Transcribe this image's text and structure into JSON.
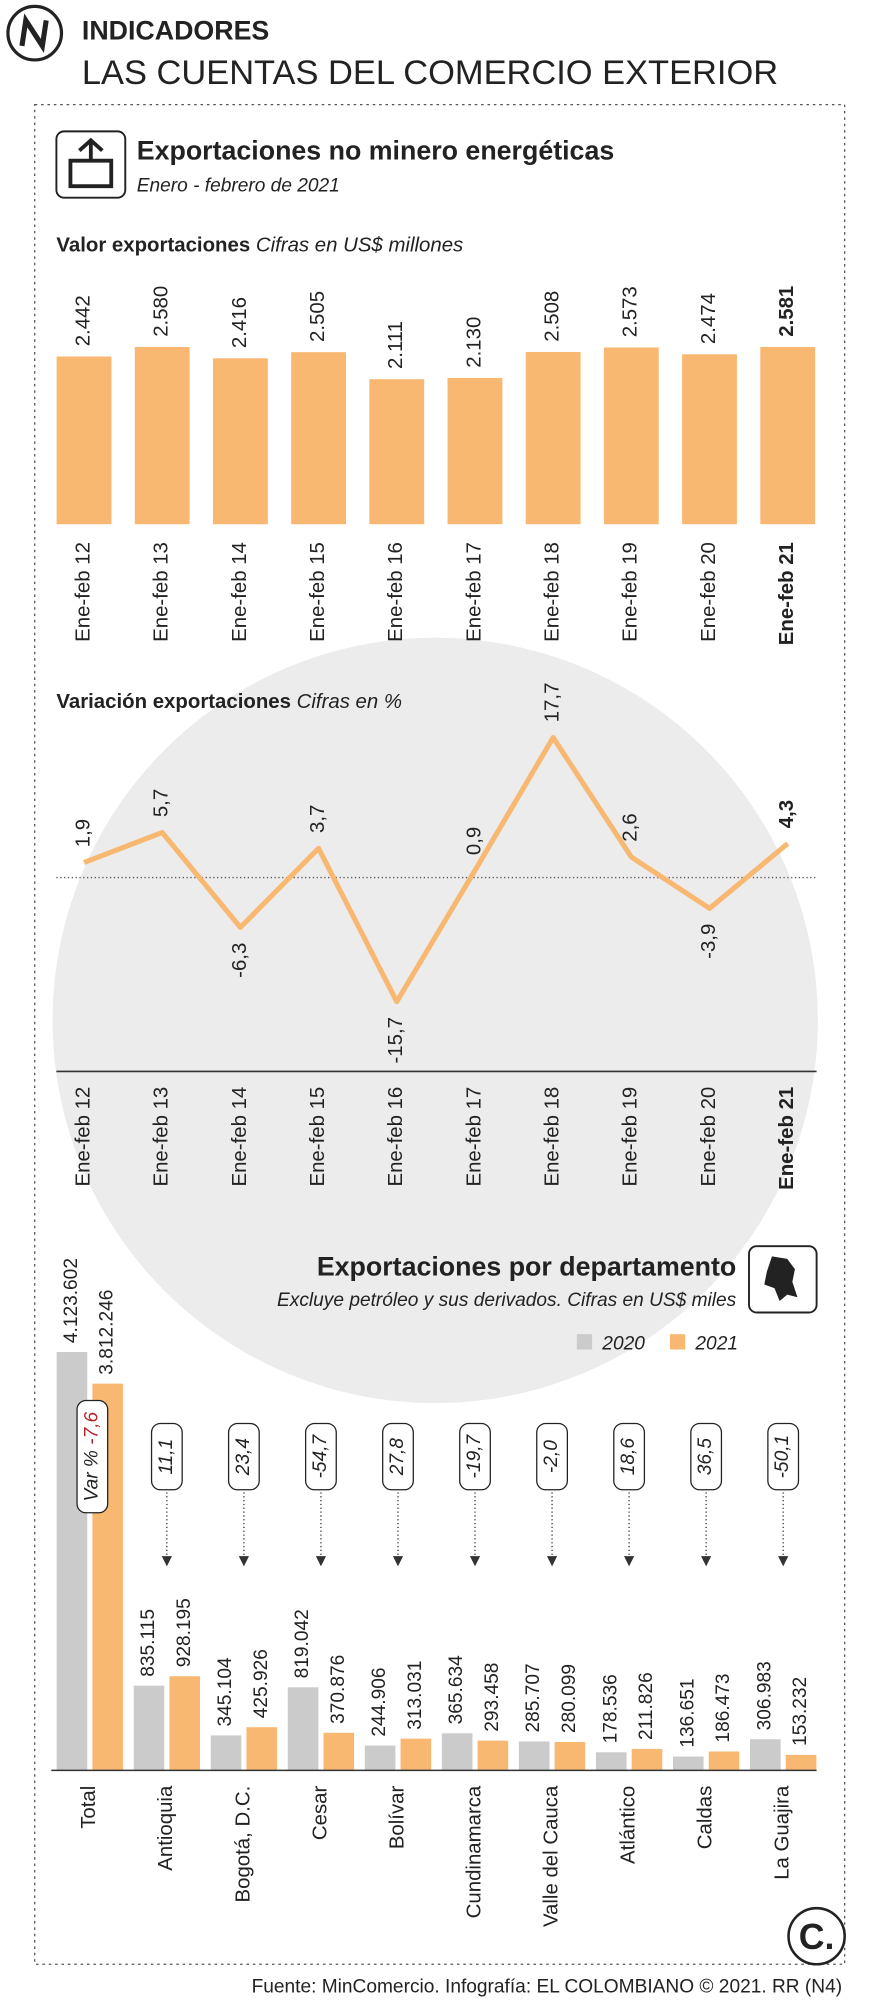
{
  "header": {
    "section": "INDICADORES",
    "title": "LAS CUENTAS DEL COMERCIO EXTERIOR",
    "subtitle": "Exportaciones no minero energéticas",
    "period": "Enero - febrero de 2021"
  },
  "chart_data": [
    {
      "type": "bar",
      "title": "Valor exportaciones",
      "subtitle": "Cifras en US$ millones",
      "color": "#f9b872",
      "categories": [
        "Ene-feb 12",
        "Ene-feb 13",
        "Ene-feb 14",
        "Ene-feb 15",
        "Ene-feb 16",
        "Ene-feb 17",
        "Ene-feb 18",
        "Ene-feb 19",
        "Ene-feb 20",
        "Ene-feb 21"
      ],
      "values": [
        2442,
        2580,
        2416,
        2505,
        2111,
        2130,
        2508,
        2573,
        2474,
        2581
      ],
      "value_labels": [
        "2.442",
        "2.580",
        "2.416",
        "2.505",
        "2.111",
        "2.130",
        "2.508",
        "2.573",
        "2.474",
        "2.581"
      ]
    },
    {
      "type": "line",
      "title": "Variación exportaciones",
      "subtitle": "Cifras en %",
      "color": "#f9b872",
      "categories": [
        "Ene-feb 12",
        "Ene-feb 13",
        "Ene-feb 14",
        "Ene-feb 15",
        "Ene-feb 16",
        "Ene-feb 17",
        "Ene-feb 18",
        "Ene-feb 19",
        "Ene-feb 20",
        "Ene-feb 21"
      ],
      "values": [
        1.9,
        5.7,
        -6.3,
        3.7,
        -15.7,
        0.9,
        17.7,
        2.6,
        -3.9,
        4.3
      ],
      "value_labels": [
        "1,9",
        "5,7",
        "-6,3",
        "3,7",
        "-15,7",
        "0,9",
        "17,7",
        "2,6",
        "-3,9",
        "4,3"
      ]
    },
    {
      "type": "grouped-bar",
      "title": "Exportaciones por departamento",
      "subtitle": "Excluye petróleo y sus derivados. Cifras en US$ miles",
      "categories": [
        "Total",
        "Antioquia",
        "Bogotá, D.C.",
        "Cesar",
        "Bolívar",
        "Cundinamarca",
        "Valle del Cauca",
        "Atlántico",
        "Caldas",
        "La Guajira"
      ],
      "series": [
        {
          "name": "2020",
          "color": "#cbcbcb",
          "values": [
            4123602,
            835115,
            345104,
            819042,
            244906,
            365634,
            285707,
            178536,
            136651,
            306983
          ],
          "value_labels": [
            "4.123.602",
            "835.115",
            "345.104",
            "819.042",
            "244.906",
            "365.634",
            "285.707",
            "178.536",
            "136.651",
            "306.983"
          ]
        },
        {
          "name": "2021",
          "color": "#f9b872",
          "values": [
            3812246,
            928195,
            425926,
            370876,
            313031,
            293458,
            280099,
            211826,
            186473,
            153232
          ],
          "value_labels": [
            "3.812.246",
            "928.195",
            "425.926",
            "370.876",
            "313.031",
            "293.458",
            "280.099",
            "211.826",
            "186.473",
            "153.232"
          ]
        }
      ],
      "var_label": "Var %",
      "variation": [
        -7.6,
        11.1,
        23.4,
        -54.7,
        27.8,
        -19.7,
        -2.0,
        18.6,
        36.5,
        -50.1
      ],
      "variation_labels": [
        "-7,6",
        "11,1",
        "23,4",
        "-54,7",
        "27,8",
        "-19,7",
        "-2,0",
        "18,6",
        "36,5",
        "-50,1"
      ]
    }
  ],
  "footer": {
    "source": "Fuente: MinComercio. Infografía: EL COLOMBIANO © 2021. RR (N4)"
  }
}
